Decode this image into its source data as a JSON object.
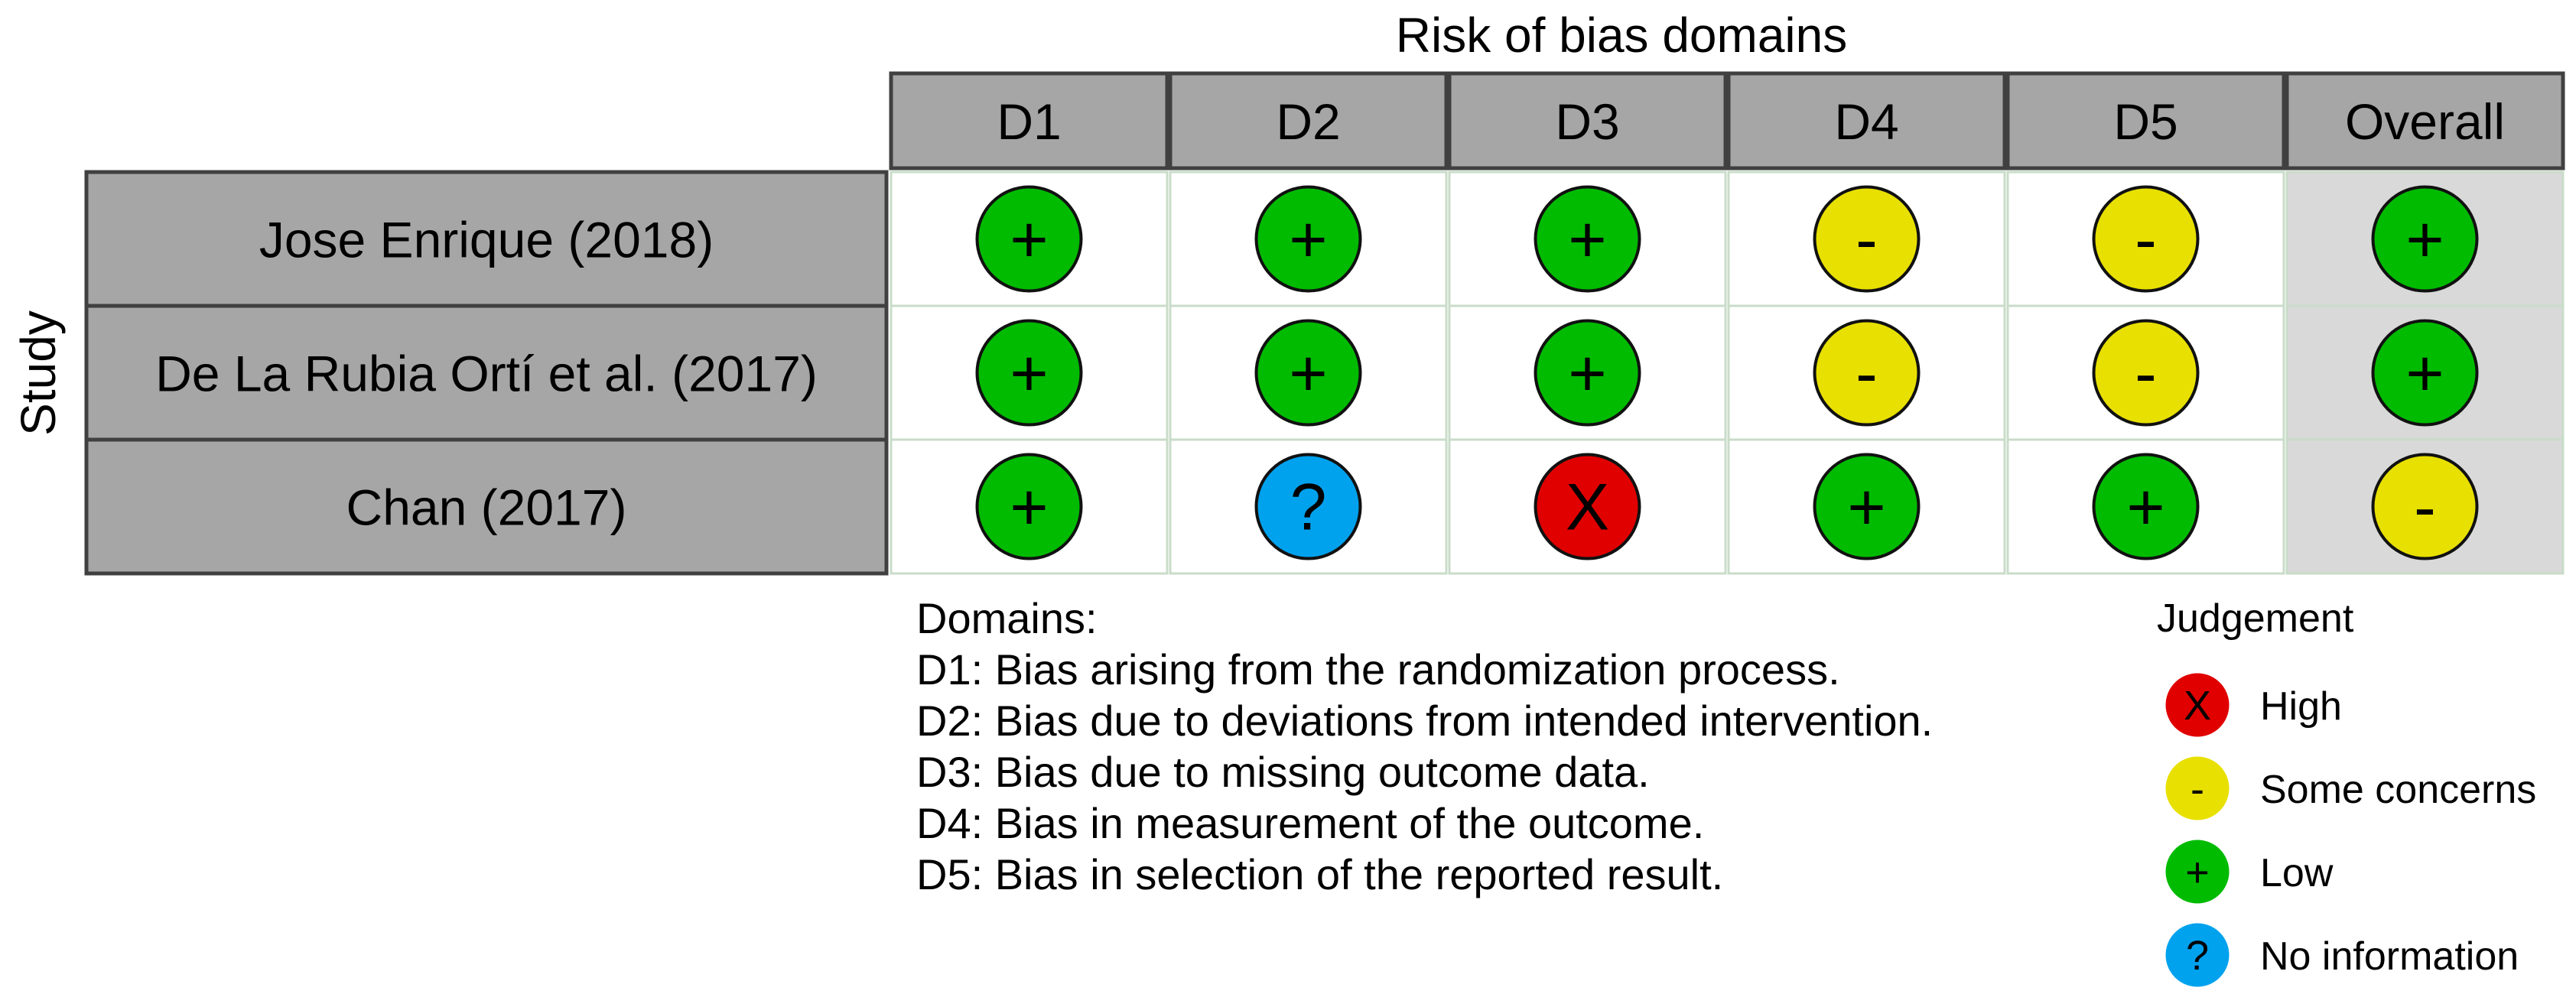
{
  "title": "Risk of bias domains",
  "y_axis_label": "Study",
  "columns": [
    "D1",
    "D2",
    "D3",
    "D4",
    "D5",
    "Overall"
  ],
  "studies": [
    {
      "name": "Jose Enrique (2018)",
      "judgements": [
        "low",
        "low",
        "low",
        "some",
        "some",
        "low"
      ]
    },
    {
      "name": "De La Rubia Ortí et al. (2017)",
      "judgements": [
        "low",
        "low",
        "low",
        "some",
        "some",
        "low"
      ]
    },
    {
      "name": "Chan (2017)",
      "judgements": [
        "low",
        "no_info",
        "high",
        "low",
        "low",
        "some"
      ]
    }
  ],
  "domains_legend": {
    "heading": "Domains:",
    "items": [
      "D1: Bias arising from the randomization process.",
      "D2: Bias due to deviations from intended intervention.",
      "D3: Bias due to missing outcome data.",
      "D4: Bias in measurement of the outcome.",
      "D5: Bias in selection of the reported result."
    ]
  },
  "judgement_legend": {
    "heading": "Judgement",
    "items": [
      {
        "key": "high",
        "label": "High"
      },
      {
        "key": "some",
        "label": "Some concerns"
      },
      {
        "key": "low",
        "label": "Low"
      },
      {
        "key": "no_info",
        "label": "No information"
      }
    ]
  },
  "judgement_styles": {
    "high": {
      "symbol": "X",
      "color": "#e00000",
      "icon": "high-risk-icon"
    },
    "some": {
      "symbol": "-",
      "color": "#e8e000",
      "icon": "some-concerns-icon"
    },
    "low": {
      "symbol": "+",
      "color": "#00bb00",
      "icon": "low-risk-icon"
    },
    "no_info": {
      "symbol": "?",
      "color": "#00a2ee",
      "icon": "no-information-icon"
    }
  },
  "colors": {
    "header_fill": "#a6a6a6",
    "overall_fill": "#d9d9d9",
    "cell_fill": "#ffffff",
    "cell_border": "#c9dcc9",
    "dark_border": "#404040"
  }
}
